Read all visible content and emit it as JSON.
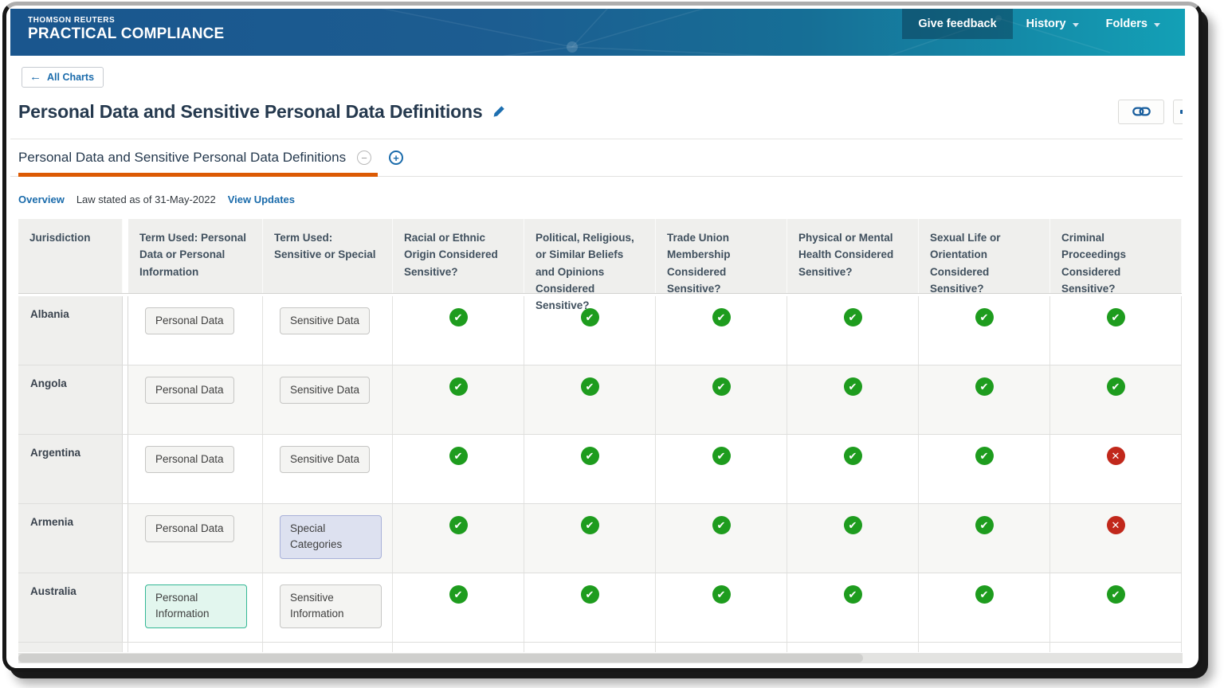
{
  "brand": {
    "line1": "THOMSON REUTERS",
    "line2": "PRACTICAL COMPLIANCE"
  },
  "appbar": {
    "give_feedback": "Give feedback",
    "history": "History",
    "folders": "Folders"
  },
  "page": {
    "back_label": "All Charts",
    "title": "Personal Data and Sensitive Personal Data Definitions"
  },
  "tab": {
    "label": "Personal Data and Sensitive Personal Data Definitions"
  },
  "meta": {
    "overview": "Overview",
    "law_stated": "Law stated as of 31-May-2022",
    "view_updates": "View Updates"
  },
  "icons": {
    "back": "left-arrow",
    "edit": "pencil",
    "copy_link": "chain-link-icon",
    "partial_action": "dash-icon",
    "collapse_tab": "minus-circle",
    "add_tab": "plus-circle",
    "menu_caret": "chevron-down",
    "yes": "check-circle",
    "no": "x-circle"
  },
  "colors": {
    "brand_blue_left": "#1a568e",
    "brand_teal_right": "#13a0b6",
    "accent_orange": "#dc5a03",
    "link_blue": "#1a6bab",
    "yes_green": "#1e9c1e",
    "no_red": "#c1281b",
    "header_gray": "#efefed",
    "stripe_gray": "#f7f7f5",
    "term_lavender": "#dde1f0",
    "term_teal": "#e2f6ee"
  },
  "table": {
    "columns": [
      "Jurisdiction",
      "Term Used: Personal Data or Personal Information",
      "Term Used: Sensitive or Special",
      "Racial or Ethnic Origin Considered Sensitive?",
      "Political, Religious, or Similar Beliefs and Opinions Considered Sensitive?",
      "Trade Union Membership Considered Sensitive?",
      "Physical or Mental Health Considered Sensitive?",
      "Sexual Life or Orientation Considered Sensitive?",
      "Criminal Proceedings Considered Sensitive?"
    ],
    "rows": [
      {
        "jurisdiction": "Albania",
        "terms": [
          {
            "label": "Personal Data",
            "variant": "default"
          },
          {
            "label": "Sensitive Data",
            "variant": "default"
          }
        ],
        "flags": [
          "yes",
          "yes",
          "yes",
          "yes",
          "yes",
          "yes"
        ]
      },
      {
        "jurisdiction": "Angola",
        "terms": [
          {
            "label": "Personal Data",
            "variant": "default"
          },
          {
            "label": "Sensitive Data",
            "variant": "default"
          }
        ],
        "flags": [
          "yes",
          "yes",
          "yes",
          "yes",
          "yes",
          "yes"
        ]
      },
      {
        "jurisdiction": "Argentina",
        "terms": [
          {
            "label": "Personal Data",
            "variant": "default"
          },
          {
            "label": "Sensitive Data",
            "variant": "default"
          }
        ],
        "flags": [
          "yes",
          "yes",
          "yes",
          "yes",
          "yes",
          "no"
        ]
      },
      {
        "jurisdiction": "Armenia",
        "terms": [
          {
            "label": "Personal Data",
            "variant": "default"
          },
          {
            "label": "Special Categories",
            "variant": "lavender"
          }
        ],
        "flags": [
          "yes",
          "yes",
          "yes",
          "yes",
          "yes",
          "no"
        ]
      },
      {
        "jurisdiction": "Australia",
        "terms": [
          {
            "label": "Personal Information",
            "variant": "teal"
          },
          {
            "label": "Sensitive Information",
            "variant": "default"
          }
        ],
        "flags": [
          "yes",
          "yes",
          "yes",
          "yes",
          "yes",
          "yes"
        ]
      }
    ]
  }
}
